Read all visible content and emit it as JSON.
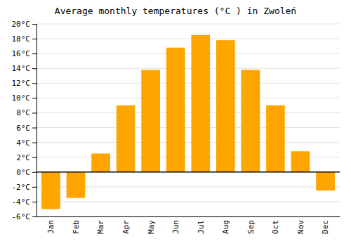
{
  "chart_data": {
    "type": "bar",
    "title": "Average monthly temperatures (°C ) in Zwoleń",
    "categories": [
      "Jan",
      "Feb",
      "Mar",
      "Apr",
      "May",
      "Jun",
      "Jul",
      "Aug",
      "Sep",
      "Oct",
      "Nov",
      "Dec"
    ],
    "values": [
      -5.0,
      -3.5,
      2.5,
      9.0,
      13.8,
      16.8,
      18.5,
      17.8,
      13.8,
      9.0,
      2.8,
      -2.5
    ],
    "color": "#FFA500",
    "ylim": [
      -6,
      20
    ],
    "yticks": [
      {
        "value": -6,
        "label": "-6°C"
      },
      {
        "value": -4,
        "label": "-4°C"
      },
      {
        "value": -2,
        "label": "-2°C"
      },
      {
        "value": 0,
        "label": "0°C"
      },
      {
        "value": 2,
        "label": "2°C"
      },
      {
        "value": 4,
        "label": "4°C"
      },
      {
        "value": 6,
        "label": "6°C"
      },
      {
        "value": 8,
        "label": "8°C"
      },
      {
        "value": 10,
        "label": "10°C"
      },
      {
        "value": 12,
        "label": "12°C"
      },
      {
        "value": 14,
        "label": "14°C"
      },
      {
        "value": 16,
        "label": "16°C"
      },
      {
        "value": 18,
        "label": "18°C"
      },
      {
        "value": 20,
        "label": "20°C"
      }
    ],
    "grid": true
  }
}
